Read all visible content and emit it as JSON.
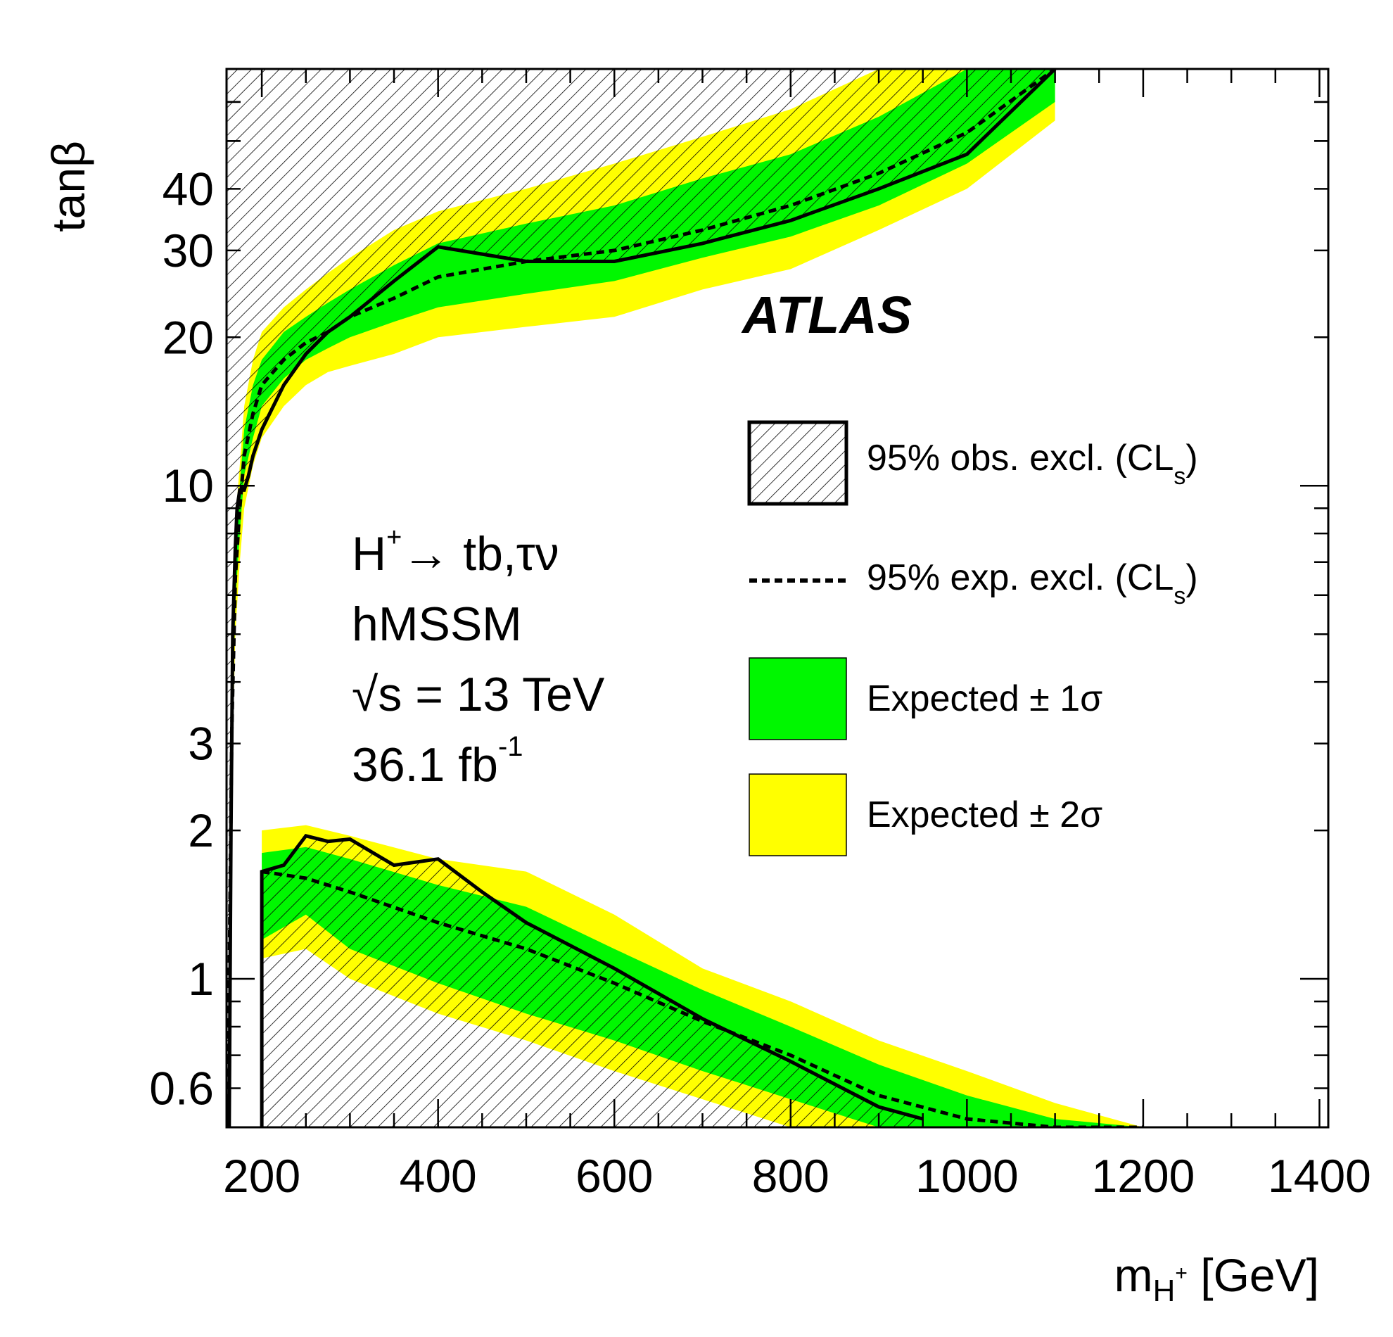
{
  "chart_data": {
    "type": "area",
    "xlim": [
      160,
      1410
    ],
    "ylim": [
      0.5,
      70
    ],
    "y_scale": "log",
    "grid": false,
    "x_ticks": [
      200,
      400,
      600,
      800,
      1000,
      1200,
      1400
    ],
    "y_ticks": [
      0.6,
      1,
      2,
      3,
      10,
      20,
      30,
      40
    ],
    "xlabel": {
      "main": "m",
      "sub": "H",
      "sup": "+",
      "unit": " [GeV]"
    },
    "ylabel": "tanβ",
    "experiment": "ATLAS",
    "annotations": [
      {
        "key": "process",
        "parts": [
          "H",
          "+",
          "→ tb,τν"
        ]
      },
      {
        "key": "model",
        "text": "hMSSM"
      },
      {
        "key": "energy",
        "parts": [
          "√",
          "s = 13 TeV"
        ]
      },
      {
        "key": "lumi",
        "parts": [
          "36.1 fb",
          "-1"
        ]
      }
    ],
    "legend": {
      "placement": "right",
      "entries": [
        {
          "key": "obs",
          "label": "95% obs. excl. (CL",
          "sub": "s",
          "tail": ")"
        },
        {
          "key": "exp",
          "label": "95% exp. excl. (CL",
          "sub": "s",
          "tail": ")"
        },
        {
          "key": "s1",
          "label": "Expected ± 1σ"
        },
        {
          "key": "s2",
          "label": "Expected ± 2σ"
        }
      ]
    },
    "colors": {
      "green": "#00f700",
      "yellow": "#ffff00",
      "hatch_bg": "#f2f2f2",
      "line": "#000000"
    },
    "series": [
      {
        "name": "95% exp. excl. (CL_s) — high tanβ",
        "x": [
          160,
          163,
          166,
          170,
          175,
          180,
          190,
          200,
          225,
          250,
          275,
          300,
          350,
          400,
          500,
          600,
          700,
          800,
          900,
          1000,
          1100
        ],
        "yellow_low": [
          0.5,
          1.0,
          2.5,
          5.0,
          7.0,
          9.0,
          11.0,
          12.5,
          14.5,
          16.0,
          17.0,
          17.5,
          18.5,
          20.0,
          21.0,
          22.0,
          25.0,
          27.5,
          33.0,
          40.0,
          55.0
        ],
        "green_low": [
          0.5,
          1.0,
          3.0,
          5.8,
          8.0,
          10.5,
          12.5,
          14.5,
          16.5,
          18.0,
          19.0,
          20.0,
          21.5,
          23.0,
          24.5,
          26.0,
          29.0,
          32.0,
          37.0,
          45.0,
          60.0
        ],
        "expected": [
          0.5,
          1.0,
          3.2,
          6.5,
          9.0,
          11.5,
          14.0,
          16.0,
          18.0,
          19.5,
          20.5,
          22.0,
          24.0,
          26.5,
          28.5,
          30.0,
          33.0,
          37.0,
          43.0,
          52.0,
          70.0
        ],
        "green_high": [
          0.5,
          1.0,
          3.5,
          7.5,
          10.0,
          13.0,
          16.0,
          18.0,
          20.5,
          22.0,
          23.5,
          25.0,
          28.0,
          31.0,
          34.0,
          37.0,
          42.0,
          47.0,
          56.0,
          70.0,
          70.0
        ],
        "yellow_high": [
          0.5,
          1.0,
          4.0,
          8.5,
          11.0,
          14.5,
          18.0,
          20.5,
          23.0,
          25.0,
          27.0,
          29.0,
          33.0,
          36.0,
          40.0,
          45.0,
          51.0,
          58.0,
          70.0,
          70.0,
          70.0
        ]
      },
      {
        "name": "95% obs. excl. (CL_s) — high tanβ",
        "x": [
          163,
          165,
          167,
          170,
          172,
          175,
          180,
          185,
          190,
          200,
          225,
          250,
          275,
          300,
          350,
          400,
          500,
          600,
          700,
          800,
          900,
          1000,
          1100
        ],
        "y": [
          0.5,
          2.0,
          5.0,
          7.5,
          9.0,
          9.8,
          9.8,
          10.5,
          11.5,
          13.0,
          16.0,
          18.5,
          20.5,
          22.0,
          26.0,
          30.5,
          28.5,
          28.5,
          31.0,
          34.5,
          40.0,
          47.0,
          70.0
        ]
      },
      {
        "name": "95% exp. excl. (CL_s) — low tanβ",
        "x": [
          200,
          250,
          300,
          400,
          500,
          600,
          700,
          800,
          900,
          1000,
          1100,
          1200
        ],
        "yellow_low": [
          1.1,
          1.15,
          1.0,
          0.85,
          0.75,
          0.65,
          0.57,
          0.5,
          0.5,
          0.5,
          0.5,
          0.5
        ],
        "green_low": [
          1.2,
          1.35,
          1.15,
          0.98,
          0.85,
          0.75,
          0.65,
          0.57,
          0.5,
          0.5,
          0.5,
          0.5
        ],
        "expected": [
          1.65,
          1.6,
          1.5,
          1.3,
          1.15,
          0.98,
          0.82,
          0.7,
          0.58,
          0.52,
          0.5,
          0.5
        ],
        "green_high": [
          1.8,
          1.85,
          1.75,
          1.55,
          1.4,
          1.15,
          0.95,
          0.8,
          0.67,
          0.58,
          0.52,
          0.5
        ],
        "yellow_high": [
          2.0,
          2.05,
          1.95,
          1.75,
          1.65,
          1.35,
          1.05,
          0.9,
          0.75,
          0.65,
          0.56,
          0.5
        ]
      },
      {
        "name": "95% obs. excl. (CL_s) — low tanβ",
        "x": [
          200,
          225,
          250,
          275,
          300,
          350,
          400,
          450,
          500,
          600,
          700,
          800,
          900,
          950
        ],
        "y": [
          1.65,
          1.7,
          1.95,
          1.9,
          1.92,
          1.7,
          1.75,
          1.5,
          1.3,
          1.05,
          0.83,
          0.68,
          0.55,
          0.52
        ]
      }
    ]
  }
}
